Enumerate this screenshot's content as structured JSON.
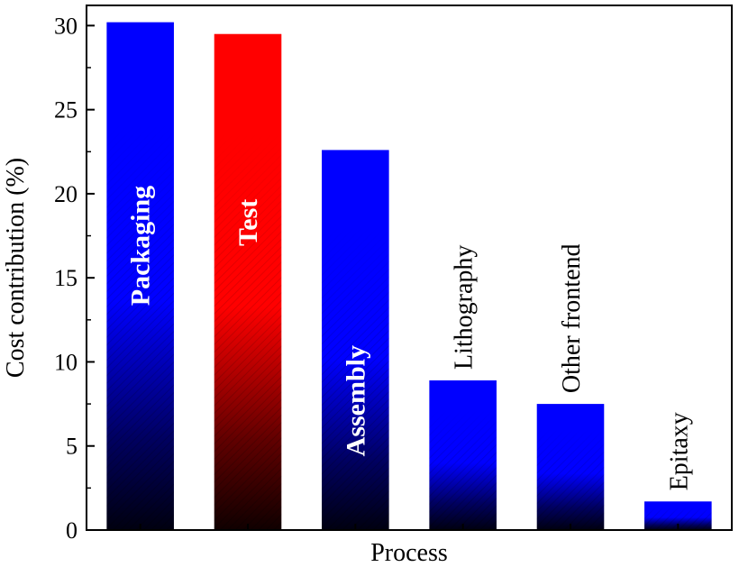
{
  "chart_data": {
    "type": "bar",
    "xlabel": "Process",
    "ylabel": "Cost contribution (%)",
    "ylim": [
      0,
      31.2
    ],
    "yticks": [
      0,
      5,
      10,
      15,
      20,
      25,
      30
    ],
    "categories": [
      "Packaging",
      "Test",
      "Assembly",
      "Lithography",
      "Other frontend",
      "Epitaxy"
    ],
    "values": [
      30.2,
      29.5,
      22.6,
      8.9,
      7.5,
      1.7
    ],
    "bar_colors": [
      "#0000ff",
      "#ff0000",
      "#0000ff",
      "#0000ff",
      "#0000ff",
      "#0000ff"
    ],
    "label_inside": [
      true,
      true,
      true,
      false,
      false,
      false
    ],
    "grid": false,
    "legend": "none"
  }
}
